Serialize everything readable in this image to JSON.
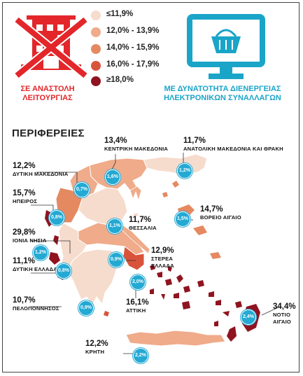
{
  "legend": [
    {
      "label": "≤11,9%",
      "color": "#f6dccd"
    },
    {
      "label": "12,0% - 13,9%",
      "color": "#efab8a"
    },
    {
      "label": "14,0% - 15,9%",
      "color": "#e58961"
    },
    {
      "label": "16,0% - 17,9%",
      "color": "#d9533a"
    },
    {
      "label": "≥18,0%",
      "color": "#8f1420"
    }
  ],
  "captions": {
    "suspended": "ΣΕ ΑΝΑΣΤΟΛΗ\nΛΕΙΤΟΥΡΓΙΑΣ",
    "online": "ΜΕ ΔΥΝΑΤΟΤΗΤΑ ΔΙΕΝΕΡΓΕΙΑΣ\nΗΛΕΚΤΡΟΝΙΚΩΝ ΣΥΝΑΛΛΑΓΩΝ"
  },
  "section_title": "ΠΕΡΙΦΕΡΕΙΕΣ",
  "icons": {
    "suspended": "closed-building-icon",
    "online": "online-shopping-monitor-icon"
  },
  "regions": [
    {
      "id": "kentriki-makedonia",
      "name": "ΚΕΝΤΡΙΚΗ ΜΑΚΕΔΟΝΙΑ",
      "pct": "13,4%",
      "online": "1,6%"
    },
    {
      "id": "anatoliki-makedonia",
      "name": "ΑΝΑΤΟΛΙΚΗ ΜΑΚΕΔΟΝΙΑ ΚΑΙ ΘΡΑΚΗ",
      "pct": "11,7%",
      "online": "1,2%"
    },
    {
      "id": "dytiki-makedonia",
      "name": "ΔΥΤΙΚΗ ΜΑΚΕΔΟΝΙΑ",
      "pct": "12,2%",
      "online": "0,7%"
    },
    {
      "id": "ipeiros",
      "name": "ΗΠΕΙΡΟΣ",
      "pct": "15,7%",
      "online": "0,8%"
    },
    {
      "id": "thessalia",
      "name": "ΘΕΣΣΑΛΙΑ",
      "pct": "11,7%",
      "online": "1,1%"
    },
    {
      "id": "voreio-aigaio",
      "name": "ΒΟΡΕΙΟ ΑΙΓΑΙΟ",
      "pct": "14,7%",
      "online": "1,5%"
    },
    {
      "id": "ionia-nisia",
      "name": "ΙΟΝΙΑ ΝΗΣΙΑ",
      "pct": "29,8%",
      "online": "1,2%"
    },
    {
      "id": "sterea-ellada",
      "name": "ΣΤΕΡΕΑ\nΕΛΛΑΔΑ",
      "pct": "12,9%",
      "online": "0,9%"
    },
    {
      "id": "dytiki-ellada",
      "name": "ΔΥΤΙΚΗ ΕΛΛΑΔΑ",
      "pct": "11,1%",
      "online": "0,8%"
    },
    {
      "id": "attiki",
      "name": "ΑΤΤΙΚΗ",
      "pct": "16,1%",
      "online": "2,0%"
    },
    {
      "id": "peloponnisos",
      "name": "ΠΕΛΟΠΟΝΝΗΣΟΣ",
      "pct": "10,7%",
      "online": "0,9%"
    },
    {
      "id": "notio-aigaio",
      "name": "ΝΟΤΙΟ ΑΙΓΑΙΟ",
      "pct": "34,4%",
      "online": "2,4%"
    },
    {
      "id": "kriti",
      "name": "ΚΡΗΤΗ",
      "pct": "12,2%",
      "online": "2,2%"
    }
  ]
}
